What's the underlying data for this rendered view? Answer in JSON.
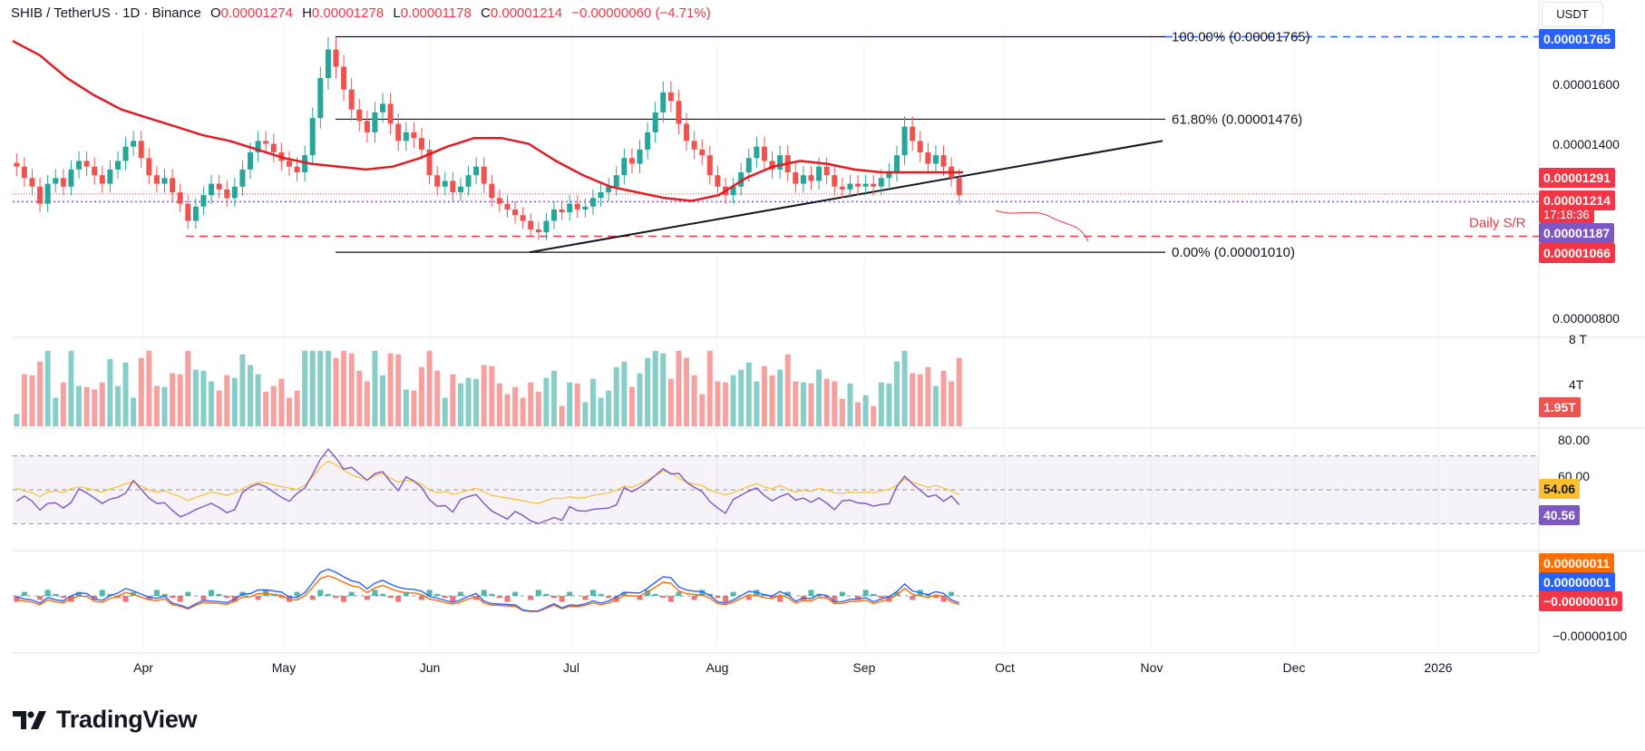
{
  "header": {
    "symbol": "SHIB / TetherUS · 1D · Binance",
    "open_label": "O",
    "open": "0.00001274",
    "high_label": "H",
    "high": "0.00001278",
    "low_label": "L",
    "low": "0.00001178",
    "close_label": "C",
    "close": "0.00001214",
    "change": "−0.00000060 (−4.71%)"
  },
  "unit_button": "USDT",
  "colors": {
    "bull": "#26a69a",
    "bear": "#ef5350",
    "ma": "#e31b23",
    "rsi": "#7e57c2",
    "rsi_ma": "#fbc02d",
    "macd": "#2962ff",
    "signal": "#ff6d00"
  },
  "price_axis": {
    "labels": [
      "0.00001600",
      "0.00001400",
      "0.00000800"
    ]
  },
  "fib_levels": [
    {
      "label": "100.00% (0.00001765)",
      "value": 1.765e-05
    },
    {
      "label": "61.80% (0.00001476)",
      "value": 1.476e-05
    },
    {
      "label": "0.00% (0.00001010)",
      "value": 1.01e-05
    }
  ],
  "price_tags": {
    "fib_top": "0.00001765",
    "ma": "0.00001291",
    "last": "0.00001214",
    "countdown": "17:18:36",
    "support": "0.00001187",
    "daily_sr": "0.00001066"
  },
  "daily_sr_label": "Daily S/R",
  "volume_axis": {
    "labels": [
      "8 T",
      "4T"
    ],
    "last": "1.95T"
  },
  "rsi": {
    "axis_labels": [
      "80.00",
      "60.00"
    ],
    "value": "40.56",
    "ma_value": "54.06"
  },
  "macd": {
    "axis_labels": [
      "−0.00000100"
    ],
    "signal": "0.00000011",
    "macd": "0.00000001",
    "hist": "−0.00000010"
  },
  "months": [
    "Apr",
    "May",
    "Jun",
    "Jul",
    "Aug",
    "Sep",
    "Oct",
    "Nov",
    "Dec",
    "2026"
  ],
  "logo_text": "TradingView",
  "chart_data": {
    "type": "candlestick",
    "title": "SHIB / TetherUS · 1D · Binance",
    "x_range": [
      "2025-03-01",
      "2026-01-31"
    ],
    "price_range": [
      7.5e-06,
      1.83e-05
    ],
    "close_series": [
      1.31e-05,
      1.27e-05,
      1.24e-05,
      1.18e-05,
      1.25e-05,
      1.27e-05,
      1.24e-05,
      1.3e-05,
      1.33e-05,
      1.31e-05,
      1.28e-05,
      1.25e-05,
      1.3e-05,
      1.33e-05,
      1.38e-05,
      1.4e-05,
      1.34e-05,
      1.28e-05,
      1.25e-05,
      1.27e-05,
      1.22e-05,
      1.18e-05,
      1.12e-05,
      1.17e-05,
      1.21e-05,
      1.25e-05,
      1.23e-05,
      1.2e-05,
      1.24e-05,
      1.3e-05,
      1.36e-05,
      1.4e-05,
      1.39e-05,
      1.36e-05,
      1.33e-05,
      1.31e-05,
      1.29e-05,
      1.35e-05,
      1.48e-05,
      1.62e-05,
      1.72e-05,
      1.66e-05,
      1.58e-05,
      1.51e-05,
      1.47e-05,
      1.43e-05,
      1.5e-05,
      1.53e-05,
      1.46e-05,
      1.4e-05,
      1.43e-05,
      1.41e-05,
      1.37e-05,
      1.28e-05,
      1.24e-05,
      1.26e-05,
      1.22e-05,
      1.24e-05,
      1.28e-05,
      1.31e-05,
      1.25e-05,
      1.2e-05,
      1.18e-05,
      1.16e-05,
      1.14e-05,
      1.12e-05,
      1.09e-05,
      1.08e-05,
      1.12e-05,
      1.16e-05,
      1.15e-05,
      1.18e-05,
      1.16e-05,
      1.17e-05,
      1.2e-05,
      1.22e-05,
      1.24e-05,
      1.28e-05,
      1.34e-05,
      1.32e-05,
      1.37e-05,
      1.43e-05,
      1.5e-05,
      1.57e-05,
      1.54e-05,
      1.46e-05,
      1.4e-05,
      1.37e-05,
      1.35e-05,
      1.28e-05,
      1.24e-05,
      1.21e-05,
      1.24e-05,
      1.29e-05,
      1.34e-05,
      1.38e-05,
      1.33e-05,
      1.3e-05,
      1.35e-05,
      1.29e-05,
      1.25e-05,
      1.28e-05,
      1.26e-05,
      1.31e-05,
      1.28e-05,
      1.24e-05,
      1.23e-05,
      1.25e-05,
      1.24e-05,
      1.25e-05,
      1.24e-05,
      1.27e-05,
      1.29e-05,
      1.35e-05,
      1.45e-05,
      1.4e-05,
      1.36e-05,
      1.32e-05,
      1.35e-05,
      1.31e-05,
      1.27e-05,
      1.21e-05
    ],
    "ma_series": [
      1.75e-05,
      1.7e-05,
      1.62e-05,
      1.56e-05,
      1.51e-05,
      1.48e-05,
      1.45e-05,
      1.42e-05,
      1.4e-05,
      1.37e-05,
      1.34e-05,
      1.32e-05,
      1.31e-05,
      1.3e-05,
      1.31e-05,
      1.34e-05,
      1.38e-05,
      1.41e-05,
      1.41e-05,
      1.39e-05,
      1.33e-05,
      1.28e-05,
      1.24e-05,
      1.22e-05,
      1.2e-05,
      1.19e-05,
      1.21e-05,
      1.27e-05,
      1.31e-05,
      1.33e-05,
      1.32e-05,
      1.3e-05,
      1.29e-05,
      1.29e-05,
      1.29e-05,
      1.29e-05
    ],
    "support_level": 1.187e-05,
    "daily_sr_level": 1.066e-05,
    "volume_max": 8,
    "rsi_range": [
      20,
      80
    ],
    "rsi_last": 40.56,
    "rsi_ma_last": 54.06,
    "macd_last": 1e-08,
    "signal_last": 1.1e-07,
    "hist_last": -1e-07
  }
}
